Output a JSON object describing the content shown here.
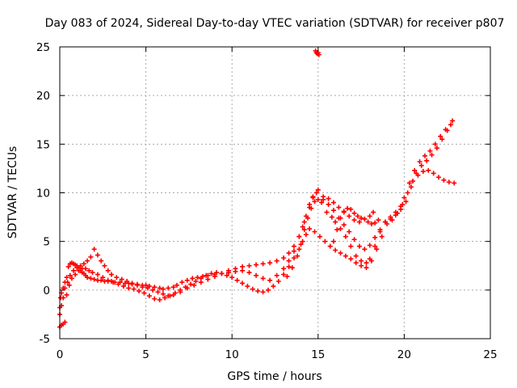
{
  "chart_data": {
    "type": "scatter",
    "title": "Day 083 of 2024, Sidereal Day-to-day VTEC variation (SDTVAR) for receiver p807",
    "xlabel": "GPS time / hours",
    "ylabel": "SDTVAR / TECUs",
    "xlim": [
      0,
      25
    ],
    "ylim": [
      -5,
      25
    ],
    "x_ticks": [
      0,
      5,
      10,
      15,
      20,
      25
    ],
    "y_ticks": [
      -5,
      0,
      5,
      10,
      15,
      20,
      25
    ],
    "x_tick_labels": [
      "0",
      "5",
      "10",
      "15",
      "20",
      "25"
    ],
    "y_tick_labels": [
      "-5",
      "0",
      "5",
      "10",
      "15",
      "20",
      "25"
    ],
    "grid": true,
    "legend": "none",
    "marker": "plus",
    "color": "#ff0000",
    "series": [
      {
        "x": [
          0.0,
          0.05,
          0.1,
          0.2,
          0.3,
          0.4,
          0.5,
          0.6,
          0.7,
          0.8,
          0.9,
          1.0,
          1.1,
          1.2,
          1.3,
          1.4,
          1.5,
          1.6,
          1.8,
          2.0,
          2.2,
          2.4,
          2.6,
          2.8,
          3.0,
          3.2,
          3.5,
          3.8,
          4.0,
          4.2,
          4.5,
          4.8,
          5.0,
          5.2,
          5.5,
          5.8,
          6.0,
          6.3,
          6.6,
          6.8,
          7.1,
          7.4,
          7.7,
          8.0,
          8.3,
          8.6,
          9.0,
          9.4,
          9.8,
          10.2,
          10.6,
          11.0,
          11.4,
          11.8,
          12.2,
          12.6,
          13.0,
          13.3,
          13.6,
          13.9,
          14.2,
          14.5,
          14.7,
          14.9,
          15.2,
          15.5,
          15.8,
          16.0,
          16.3,
          16.6,
          16.9,
          17.2,
          17.5,
          17.8,
          18.0,
          18.3,
          18.6,
          18.9,
          19.2,
          19.5,
          19.8,
          20.0,
          20.3,
          20.6,
          20.9,
          21.2,
          21.5,
          21.8,
          22.1,
          22.4,
          22.7
        ],
        "y": [
          -1.8,
          -0.8,
          -0.3,
          0.2,
          0.8,
          1.3,
          2.4,
          2.7,
          2.8,
          2.7,
          2.6,
          2.5,
          2.3,
          2.0,
          1.8,
          1.7,
          1.5,
          1.3,
          1.2,
          1.1,
          1.0,
          1.0,
          0.9,
          0.9,
          0.9,
          0.8,
          0.8,
          0.7,
          0.7,
          0.6,
          0.6,
          0.5,
          0.5,
          0.4,
          0.3,
          0.2,
          0.1,
          0.2,
          0.3,
          0.5,
          0.8,
          1.0,
          1.2,
          1.3,
          1.4,
          1.5,
          1.6,
          1.7,
          1.8,
          1.9,
          2.0,
          1.8,
          1.5,
          1.2,
          1.0,
          1.5,
          2.2,
          3.0,
          4.0,
          5.5,
          7.0,
          8.5,
          9.5,
          10.0,
          9.0,
          8.0,
          7.5,
          7.0,
          6.3,
          5.5,
          4.5,
          3.5,
          3.0,
          2.8,
          3.2,
          4.5,
          6.0,
          7.0,
          7.5,
          8.0,
          8.6,
          9.5,
          11.0,
          12.3,
          13.2,
          13.8,
          14.3,
          15.0,
          15.8,
          16.5,
          17.0
        ]
      },
      {
        "x": [
          0.0,
          0.1,
          0.2,
          0.3,
          0.45,
          0.6,
          0.8,
          1.0,
          1.2,
          1.4,
          1.6,
          1.8,
          2.0,
          2.2,
          2.4,
          2.6,
          2.8,
          3.0,
          3.3,
          3.6,
          3.9,
          4.2,
          4.5,
          4.8,
          5.1,
          5.4,
          5.7,
          6.0,
          6.3,
          6.6,
          7.0,
          7.4,
          7.8,
          8.2,
          8.6,
          9.0,
          9.4,
          9.8,
          10.2,
          10.6,
          11.0,
          11.4,
          11.8,
          12.2,
          12.6,
          13.0,
          13.3,
          13.6,
          13.9,
          14.1,
          14.3,
          14.5,
          14.7,
          15.0,
          15.3,
          15.6,
          15.9,
          16.2,
          16.5,
          16.8,
          17.1,
          17.4,
          17.7,
          18.0,
          18.3,
          18.6,
          18.9,
          19.2,
          19.5,
          19.8,
          20.1,
          20.4,
          20.7,
          21.0,
          21.3,
          21.6,
          21.9,
          22.2,
          22.5,
          22.8
        ],
        "y": [
          -2.5,
          -1.6,
          -0.8,
          0.2,
          0.8,
          1.5,
          2.0,
          2.3,
          2.5,
          2.7,
          3.0,
          3.4,
          4.2,
          3.6,
          3.0,
          2.5,
          2.0,
          1.6,
          1.3,
          1.1,
          0.9,
          0.7,
          0.5,
          0.3,
          0.2,
          0.0,
          -0.2,
          -0.4,
          -0.6,
          -0.5,
          -0.2,
          0.2,
          0.5,
          0.8,
          1.1,
          1.4,
          1.7,
          2.0,
          2.2,
          2.4,
          2.5,
          2.6,
          2.7,
          2.8,
          3.0,
          3.3,
          3.8,
          4.5,
          5.5,
          6.5,
          7.6,
          8.8,
          9.6,
          10.3,
          9.3,
          8.8,
          8.2,
          7.4,
          6.7,
          6.0,
          5.2,
          4.5,
          4.2,
          4.6,
          5.4,
          6.2,
          7.0,
          7.3,
          7.7,
          8.3,
          9.1,
          10.6,
          12.0,
          12.8,
          13.3,
          13.9,
          14.6,
          15.5,
          16.4,
          17.4
        ]
      },
      {
        "x": [
          0.0,
          0.1,
          0.2,
          0.3,
          0.4,
          0.55,
          0.7,
          0.9,
          1.1,
          1.3,
          1.5,
          1.7,
          1.9,
          2.2,
          2.5,
          2.8,
          3.1,
          3.4,
          3.7,
          4.0,
          4.3,
          4.6,
          4.9,
          5.2,
          5.5,
          5.8,
          6.1,
          6.4,
          6.7,
          7.0,
          7.3,
          7.6,
          7.9,
          8.2,
          8.5,
          8.8,
          9.1,
          9.4,
          9.7,
          10.0,
          10.3,
          10.6,
          10.9,
          11.2,
          11.5,
          11.8,
          12.1,
          12.4,
          12.7,
          13.0,
          13.3,
          13.6,
          13.9,
          14.1,
          14.3,
          14.5,
          14.8,
          15.1,
          15.4,
          15.7,
          16.0,
          16.3,
          16.6,
          16.9,
          17.2,
          17.5,
          17.8,
          18.1,
          18.4,
          18.7,
          19.0,
          19.3,
          19.6,
          19.9,
          20.2,
          20.5,
          20.8,
          21.1,
          21.4,
          21.7,
          22.0,
          22.3,
          22.6,
          22.9
        ],
        "y": [
          -3.8,
          -3.6,
          -3.5,
          -3.3,
          -0.5,
          0.5,
          1.2,
          1.6,
          2.0,
          2.2,
          2.2,
          2.0,
          1.8,
          1.6,
          1.3,
          1.0,
          0.8,
          0.6,
          0.4,
          0.2,
          0.1,
          -0.1,
          -0.3,
          -0.6,
          -0.9,
          -1.0,
          -0.8,
          -0.6,
          -0.3,
          0.0,
          0.3,
          0.6,
          0.9,
          1.2,
          1.5,
          1.7,
          1.8,
          1.7,
          1.5,
          1.3,
          1.0,
          0.7,
          0.4,
          0.1,
          -0.1,
          -0.2,
          0.0,
          0.4,
          0.9,
          1.6,
          2.4,
          3.3,
          4.2,
          5.0,
          5.7,
          6.3,
          6.0,
          5.5,
          5.0,
          4.5,
          4.1,
          3.8,
          3.5,
          3.2,
          2.8,
          2.5,
          2.3,
          3.0,
          4.2,
          5.5,
          6.8,
          7.2,
          7.9,
          8.8,
          10.0,
          11.2,
          11.8,
          12.2,
          12.3,
          12.0,
          11.6,
          11.3,
          11.1,
          11.0
        ]
      },
      {
        "x": [
          13.2,
          13.5,
          13.8,
          14.0,
          14.2,
          14.4,
          14.6,
          14.8,
          15.0,
          15.3,
          15.6,
          15.9,
          16.2,
          16.5,
          16.8,
          17.1,
          17.4,
          17.7,
          18.0,
          18.2
        ],
        "y": [
          1.4,
          2.3,
          3.5,
          4.7,
          6.2,
          7.4,
          8.4,
          9.1,
          9.3,
          9.6,
          9.4,
          9.0,
          8.5,
          8.0,
          7.6,
          7.2,
          7.0,
          7.3,
          7.6,
          8.0
        ]
      },
      {
        "x": [
          14.85,
          14.9,
          14.95,
          15.0,
          15.05
        ],
        "y": [
          24.6,
          24.4,
          24.3,
          24.4,
          24.2
        ]
      },
      {
        "x": [
          15.9,
          16.1,
          16.3,
          16.5,
          16.7,
          16.9,
          17.1,
          17.3,
          17.5,
          17.7,
          17.9,
          18.1,
          18.3,
          18.5
        ],
        "y": [
          5.0,
          6.2,
          7.4,
          8.1,
          8.4,
          8.3,
          7.9,
          7.6,
          7.4,
          7.3,
          7.0,
          6.8,
          6.9,
          7.2
        ]
      }
    ]
  }
}
